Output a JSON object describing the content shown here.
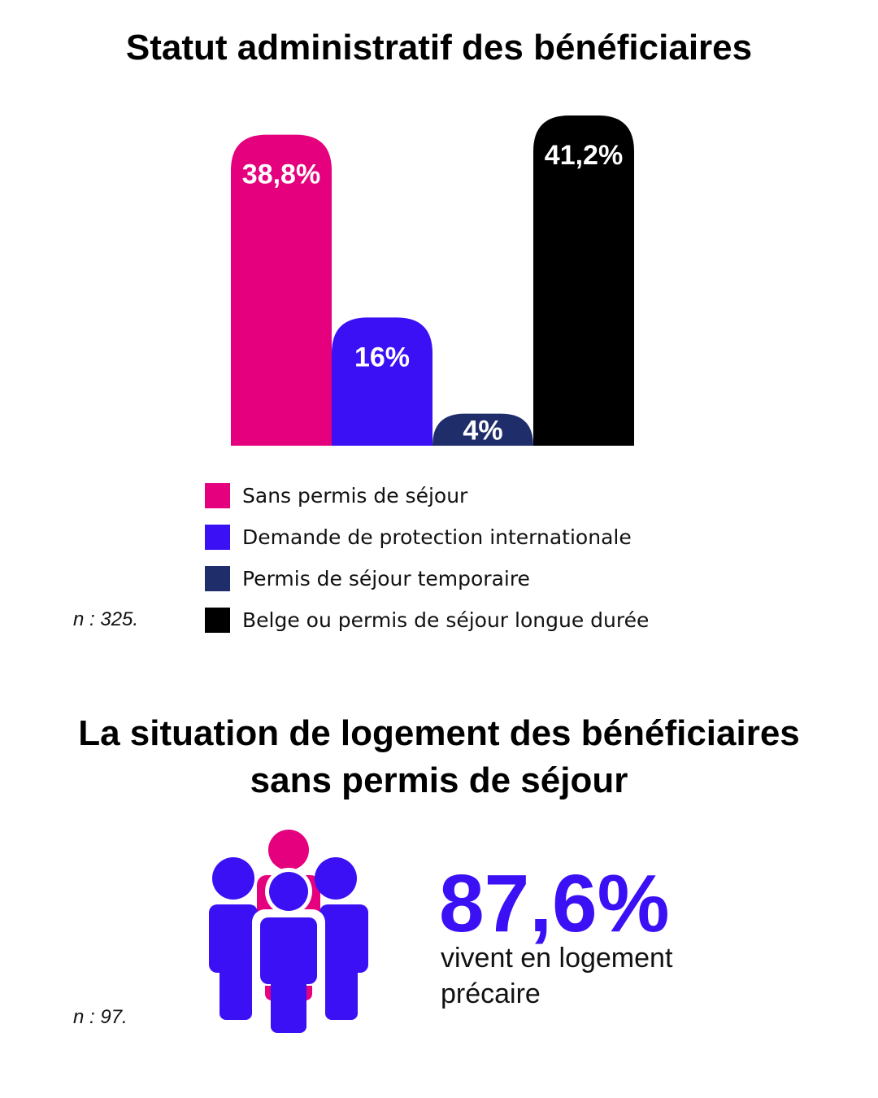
{
  "section1": {
    "title": "Statut administratif des bénéficiaires",
    "sample_size": "n : 325."
  },
  "chart_data": {
    "type": "bar",
    "title": "Statut administratif des bénéficiaires",
    "categories": [
      "Sans permis de séjour",
      "Demande de protection internationale",
      "Permis de séjour temporaire",
      "Belge ou permis de séjour longue durée"
    ],
    "values": [
      38.8,
      16,
      4,
      41.2
    ],
    "value_labels": [
      "38,8%",
      "16%",
      "4%",
      "41,2%"
    ],
    "colors": [
      "#e5007e",
      "#3b10f5",
      "#1f2d6b",
      "#000000"
    ],
    "ylim": [
      0,
      41.2
    ],
    "grid": false,
    "legend_position": "bottom"
  },
  "legend": {
    "items": [
      {
        "label": "Sans permis de séjour",
        "color": "#e5007e"
      },
      {
        "label": "Demande de protection internationale",
        "color": "#3b10f5"
      },
      {
        "label": "Permis de séjour temporaire",
        "color": "#1f2d6b"
      },
      {
        "label": "Belge ou permis de séjour longue durée",
        "color": "#000000"
      }
    ]
  },
  "section2": {
    "title_line1": "La situation de logement des bénéficiaires",
    "title_line2": "sans permis de séjour",
    "stat_value": "87,6%",
    "stat_caption": "vivent en logement précaire",
    "sample_size": "n : 97.",
    "icon": "group-of-people-icon",
    "icon_colors": {
      "primary": "#3b10f5",
      "secondary": "#e5007e"
    }
  }
}
